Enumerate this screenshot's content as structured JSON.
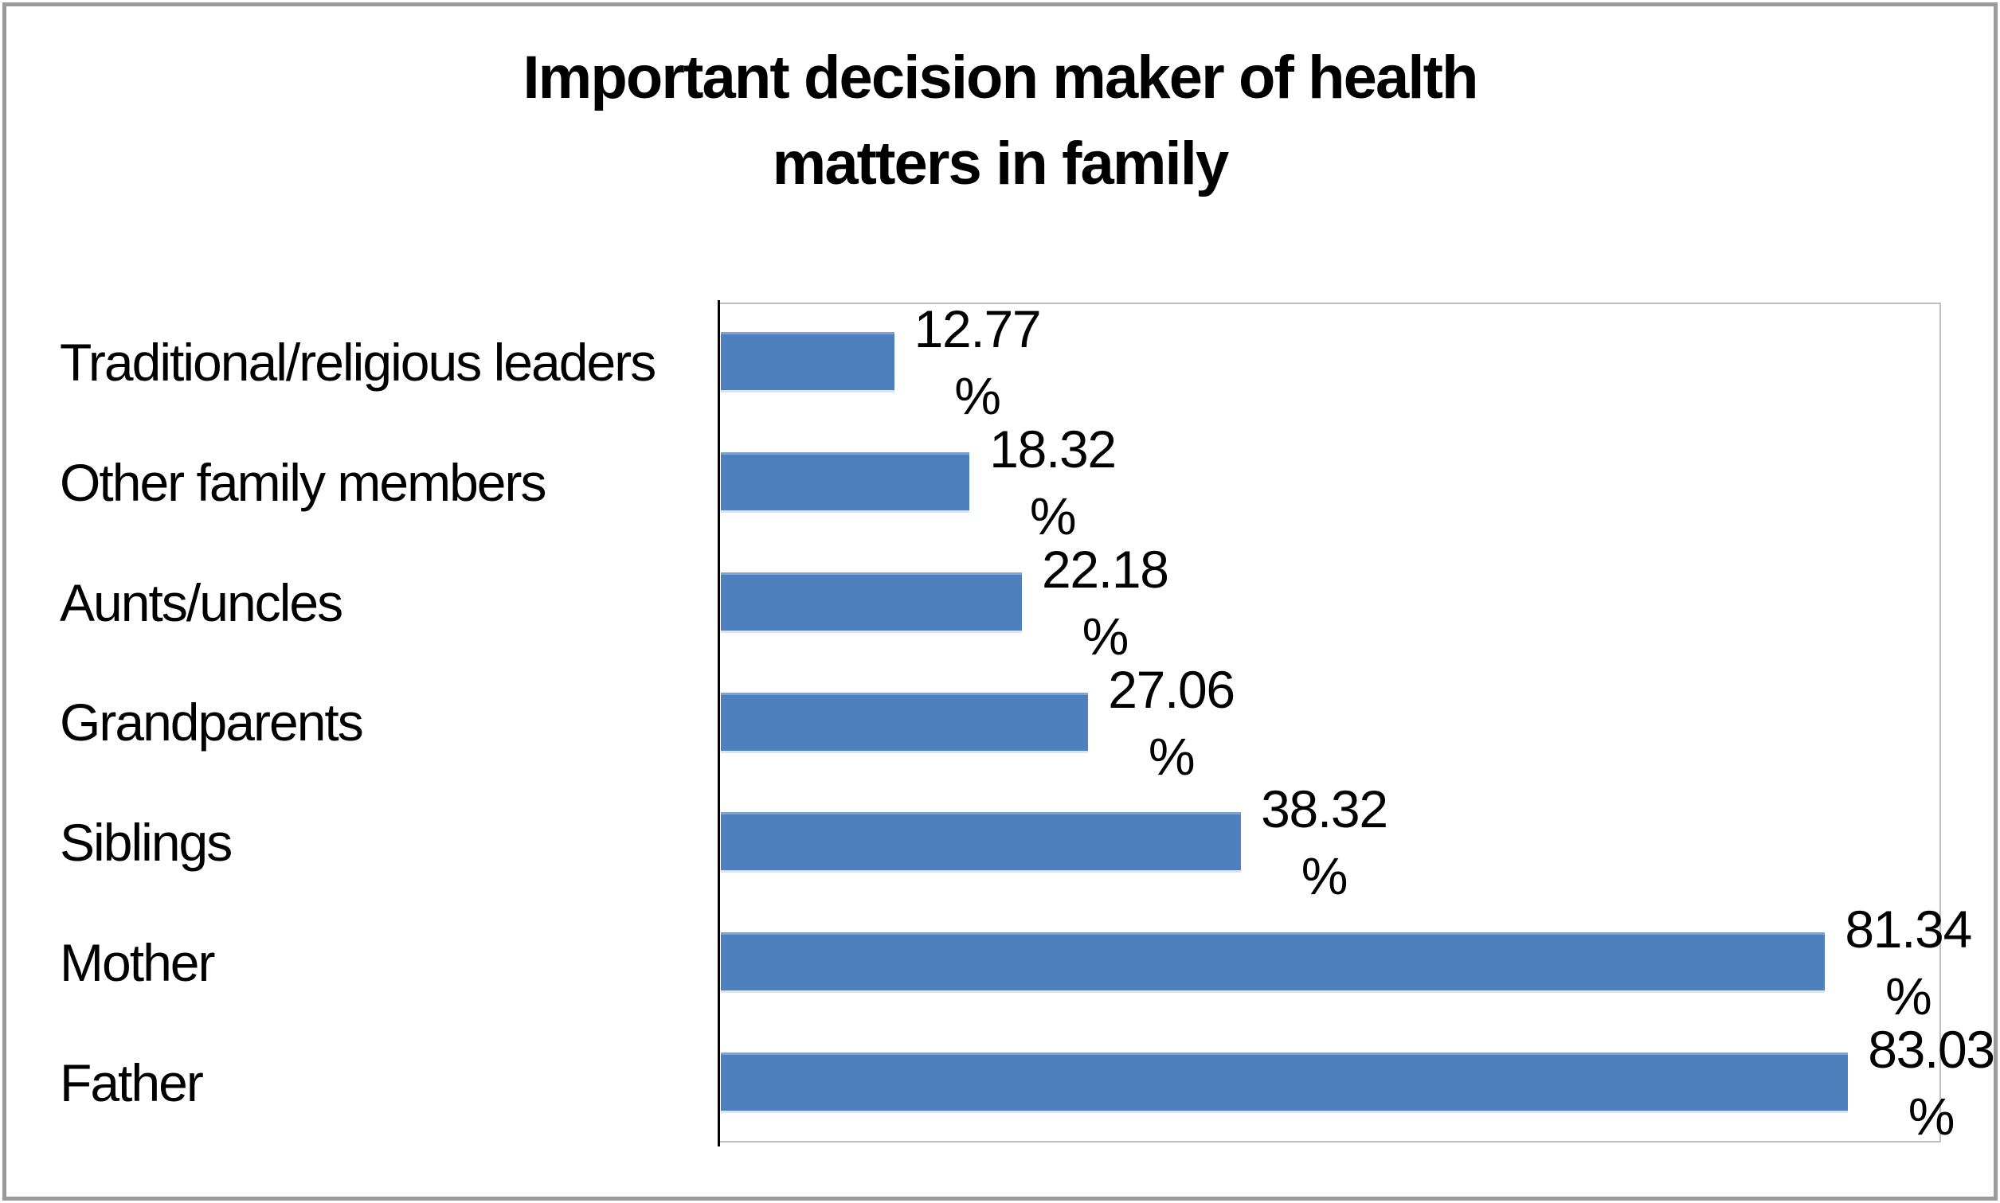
{
  "title": {
    "lines": [
      "Important decision maker of health",
      "matters in family"
    ]
  },
  "chart_data": {
    "type": "bar",
    "orientation": "horizontal",
    "title": "Important decision maker of health matters in family",
    "title_lines": [
      "Important decision maker of health",
      "matters in family"
    ],
    "categories": [
      "Traditional/religious leaders",
      "Other family members",
      "Aunts/uncles",
      "Grandparents",
      "Siblings",
      "Mother",
      "Father"
    ],
    "values": [
      12.77,
      18.32,
      22.18,
      27.06,
      38.32,
      81.34,
      83.03
    ],
    "unit": "%",
    "data_labels": [
      "12.77 %",
      "18.32 %",
      "22.18 %",
      "27.06 %",
      "38.32 %",
      "81.34 %",
      "83.03 %"
    ],
    "xlabel": "",
    "ylabel": "",
    "xlim": [
      0,
      90
    ],
    "grid": false,
    "legend": false,
    "colors": {
      "bar_fill": "#4e80bd",
      "bar_edge_top": "#7ea3d1",
      "bar_edge_bottom": "#dbe5f2",
      "axis": "#000000",
      "plot_border": "#bfbfbf",
      "outer_border": "#9a9a9a",
      "text": "#000000"
    }
  }
}
